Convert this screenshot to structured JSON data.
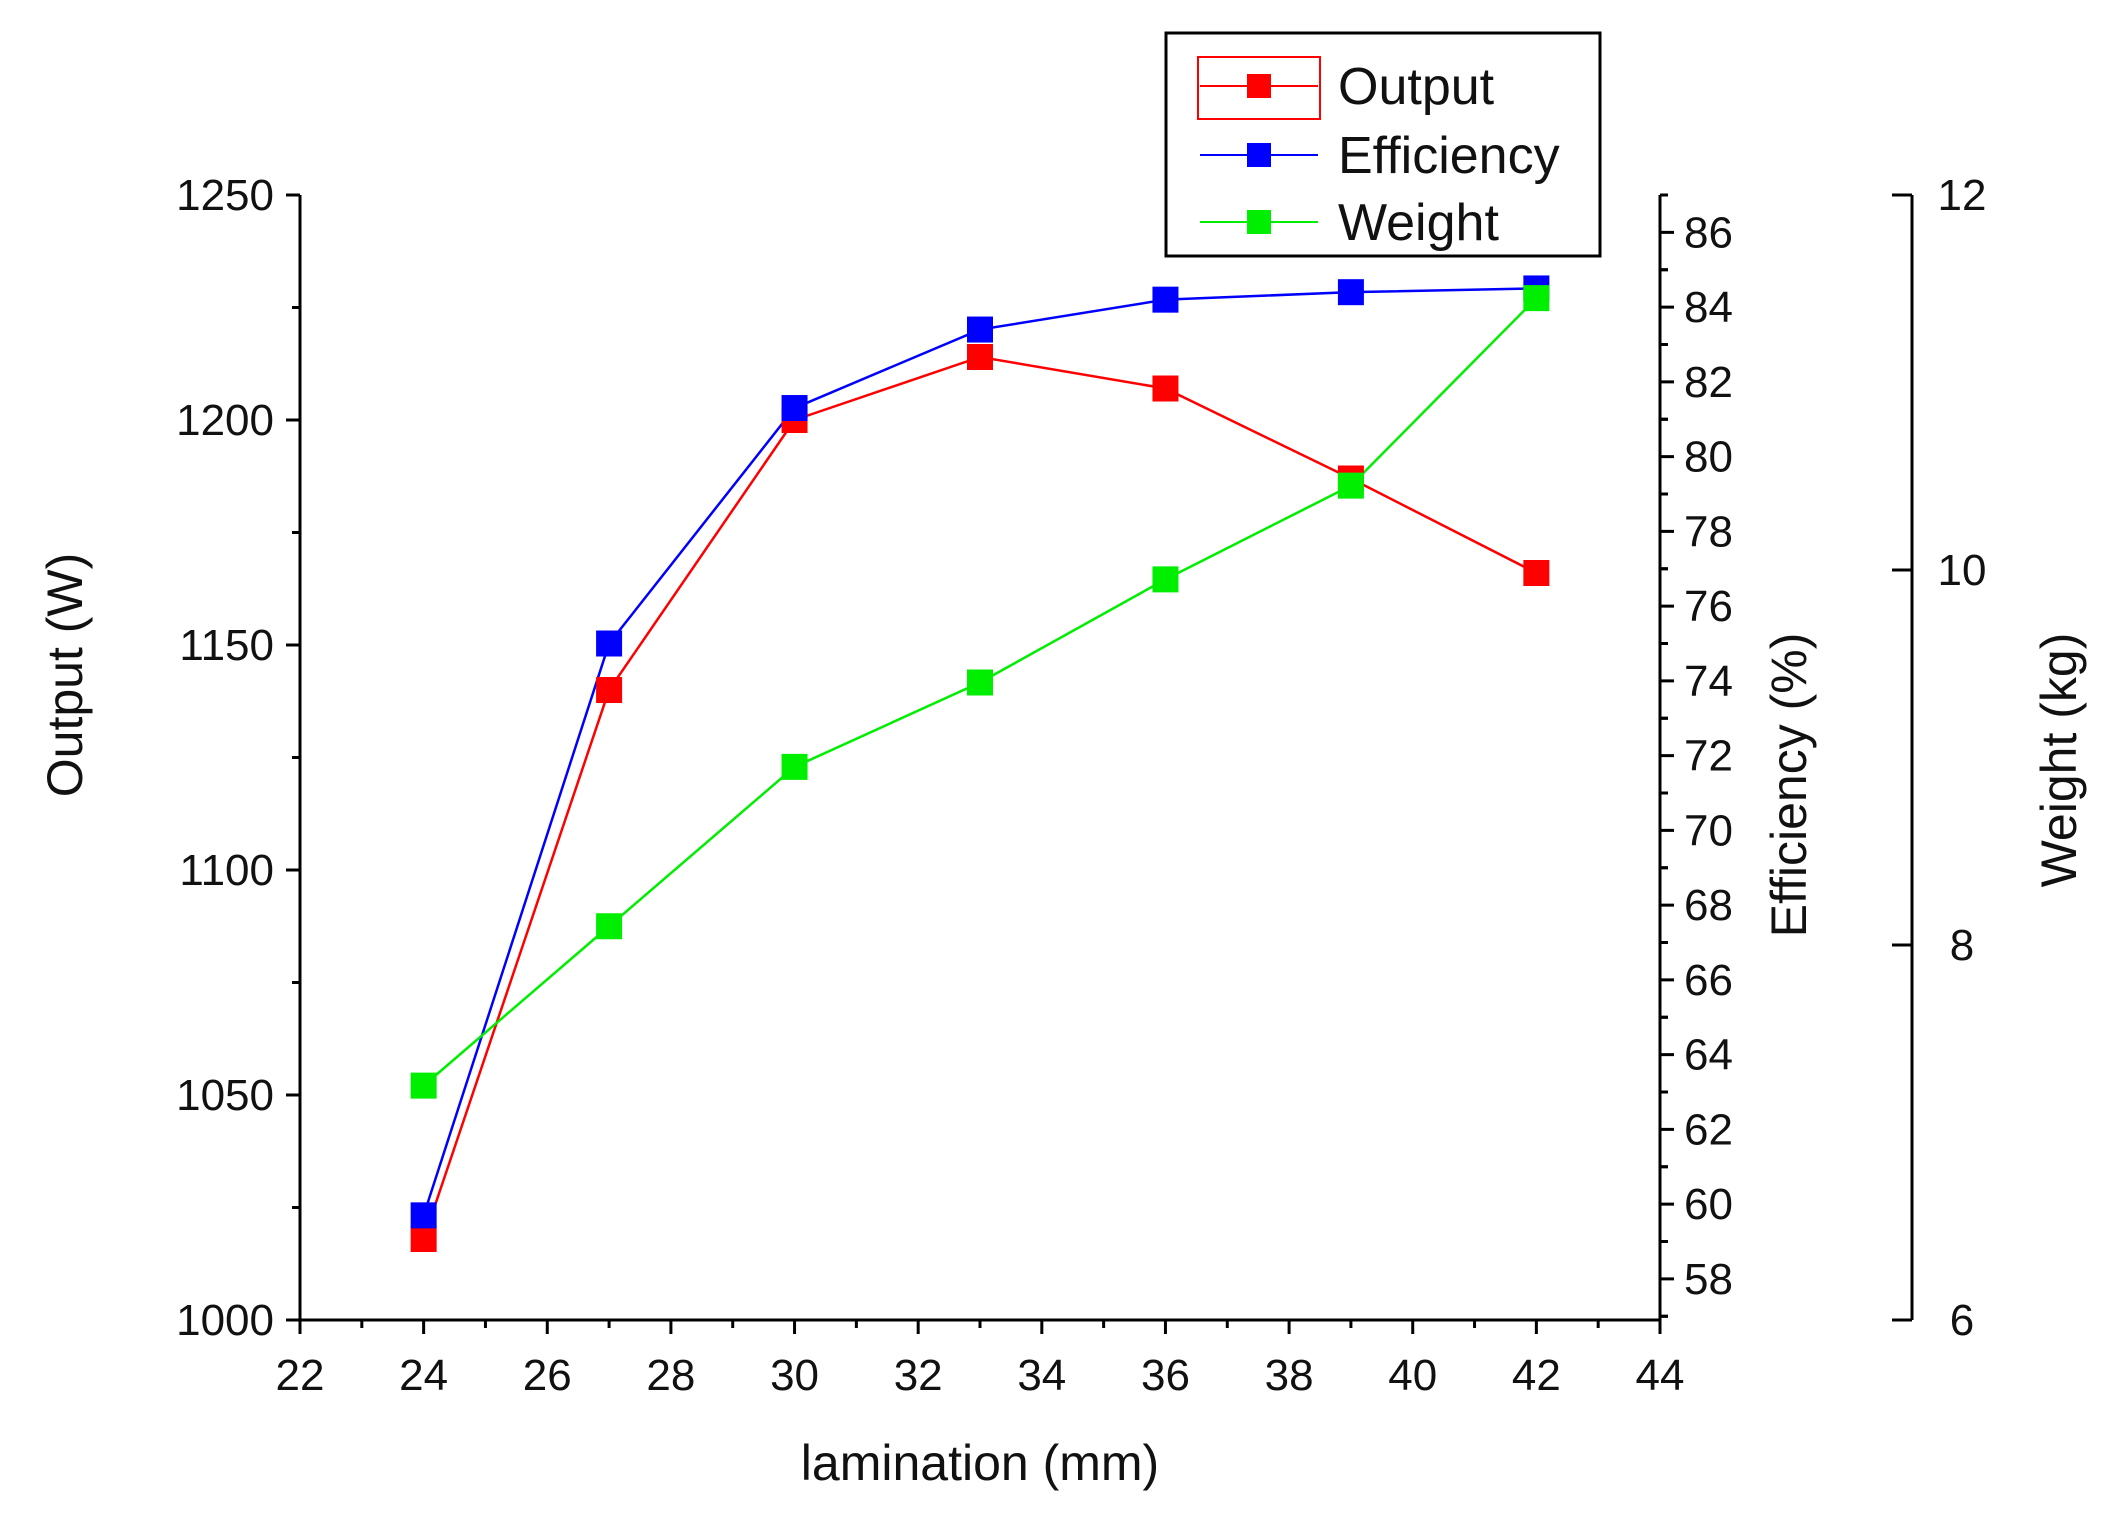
{
  "chart_data": {
    "type": "line",
    "x": [
      24,
      27,
      30,
      33,
      36,
      39,
      42
    ],
    "xlabel": "lamination (mm)",
    "xlim": [
      22,
      44
    ],
    "x_ticks": [
      "22",
      "24",
      "26",
      "28",
      "30",
      "32",
      "34",
      "36",
      "38",
      "40",
      "42",
      "44"
    ],
    "series": [
      {
        "name": "Output",
        "axis": "Output (W)",
        "color": "#ff0000",
        "values": [
          1018,
          1140,
          1200,
          1214,
          1207,
          1187,
          1166
        ]
      },
      {
        "name": "Efficiency",
        "axis": "Efficiency (%)",
        "color": "#0000ff",
        "values": [
          59.7,
          75.0,
          81.3,
          83.4,
          84.2,
          84.4,
          84.5
        ]
      },
      {
        "name": "Weight",
        "axis": "Weight (kg)",
        "color": "#00ee00",
        "values": [
          7.25,
          8.1,
          8.95,
          9.4,
          9.95,
          10.45,
          11.45
        ]
      }
    ],
    "axes": [
      {
        "id": "output",
        "label": "Output (W)",
        "range": [
          1000,
          1250
        ],
        "ticks": [
          "1000",
          "1050",
          "1100",
          "1150",
          "1200",
          "1250"
        ]
      },
      {
        "id": "efficiency",
        "label": "Efficiency (%)",
        "range": [
          56.9,
          87
        ],
        "ticks": [
          "58",
          "60",
          "62",
          "64",
          "66",
          "68",
          "70",
          "72",
          "74",
          "76",
          "78",
          "80",
          "82",
          "84",
          "86"
        ]
      },
      {
        "id": "weight",
        "label": "Weight (kg)",
        "range": [
          6,
          12
        ],
        "ticks": [
          "6",
          "8",
          "10",
          "12"
        ]
      }
    ],
    "legend": {
      "position": "top-right",
      "entries": [
        "Output",
        "Efficiency",
        "Weight"
      ]
    }
  }
}
